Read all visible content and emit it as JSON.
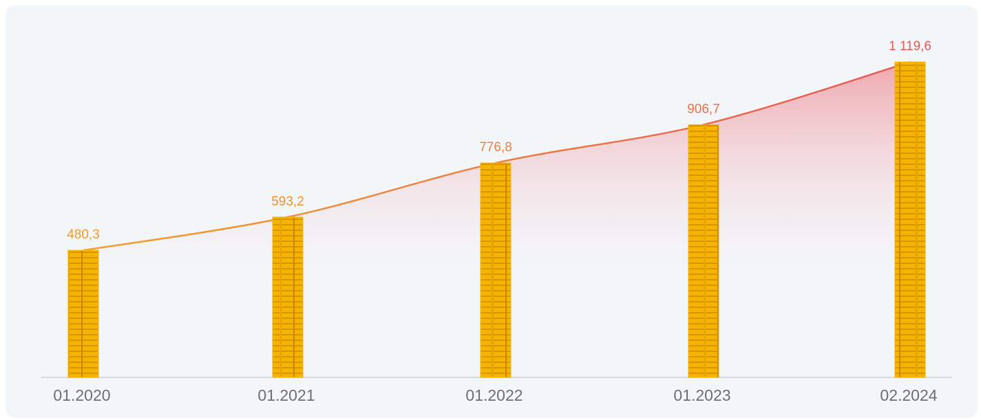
{
  "chart_data": {
    "type": "coin-stack-line",
    "categories": [
      "01.2020",
      "01.2021",
      "01.2022",
      "01.2023",
      "02.2024"
    ],
    "values": [
      480.3,
      593.2,
      776.8,
      906.7,
      1119.6
    ],
    "value_labels": [
      "480,3",
      "593,2",
      "776,8",
      "906,7",
      "1 119,6"
    ],
    "colors": [
      "#f09a2e",
      "#f0902f",
      "#ef7f3a",
      "#ec6f45",
      "#e85656"
    ],
    "coin_color": "#f5b400",
    "ylim": [
      49,
      1190
    ]
  }
}
